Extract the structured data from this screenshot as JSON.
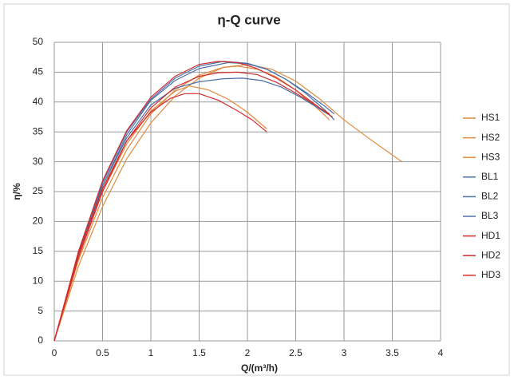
{
  "chart_data": {
    "type": "line",
    "title": "η-Q  curve",
    "x_label": "Q/(m³/h)",
    "y_label": "η/%",
    "xlim": [
      0,
      4
    ],
    "xticks": [
      0,
      0.5,
      1,
      1.5,
      2,
      2.5,
      3,
      3.5,
      4
    ],
    "ylim": [
      0,
      50
    ],
    "yticks": [
      0,
      5,
      10,
      15,
      20,
      25,
      30,
      35,
      40,
      45,
      50
    ],
    "grid": true,
    "legend": "right",
    "series": [
      {
        "name": "HS1",
        "color": "#e08a3c",
        "x": [
          0,
          0.25,
          0.5,
          0.75,
          1,
          1.25,
          1.5,
          1.75,
          2,
          2.25,
          2.5,
          2.75,
          3,
          3.25,
          3.6
        ],
        "values": [
          0,
          12.5,
          22.5,
          30.5,
          36.5,
          41,
          44,
          45.8,
          46.3,
          45.5,
          43.5,
          40.5,
          37,
          34,
          30
        ]
      },
      {
        "name": "HS2",
        "color": "#e08a3c",
        "x": [
          0,
          0.25,
          0.5,
          0.75,
          1,
          1.25,
          1.4,
          1.6,
          1.8,
          2,
          2.2
        ],
        "values": [
          0,
          14,
          25,
          33,
          38.5,
          41.8,
          42.7,
          42,
          40.5,
          38.3,
          35.5
        ]
      },
      {
        "name": "HS3",
        "color": "#e08a3c",
        "x": [
          0,
          0.25,
          0.5,
          0.75,
          1,
          1.25,
          1.5,
          1.75,
          1.9,
          2.1,
          2.3,
          2.5,
          2.7,
          2.85
        ],
        "values": [
          0,
          13.5,
          24,
          32,
          38,
          42,
          44.5,
          45.8,
          46,
          45.5,
          44.2,
          42,
          39.3,
          37
        ]
      },
      {
        "name": "BL1",
        "color": "#4a6fa8",
        "x": [
          0,
          0.25,
          0.5,
          0.75,
          1,
          1.25,
          1.5,
          1.75,
          1.95,
          2.15,
          2.35,
          2.55,
          2.75,
          2.88
        ],
        "values": [
          0,
          14.5,
          26,
          34,
          39.5,
          42.3,
          43.4,
          43.9,
          44,
          43.6,
          42.5,
          40.8,
          38.8,
          37.5
        ]
      },
      {
        "name": "BL2",
        "color": "#4a6fa8",
        "x": [
          0,
          0.25,
          0.5,
          0.75,
          1,
          1.25,
          1.5,
          1.8,
          2,
          2.2,
          2.4,
          2.6,
          2.8,
          2.9
        ],
        "values": [
          0,
          14.5,
          26,
          34.5,
          40.3,
          43.6,
          45.6,
          46.6,
          46.4,
          45.5,
          43.8,
          41.7,
          39.3,
          38
        ]
      },
      {
        "name": "BL3",
        "color": "#4a6fa8",
        "x": [
          0,
          0.25,
          0.5,
          0.75,
          1,
          1.25,
          1.5,
          1.75,
          2,
          2.2,
          2.4,
          2.6,
          2.8,
          2.9
        ],
        "values": [
          0,
          14.8,
          26.5,
          35,
          40.5,
          44,
          46,
          46.8,
          46.5,
          45.5,
          43.8,
          41.5,
          38.7,
          37
        ]
      },
      {
        "name": "HD1",
        "color": "#d42a2a",
        "x": [
          0,
          0.25,
          0.5,
          0.75,
          1,
          1.25,
          1.5,
          1.7,
          1.9,
          2.1,
          2.3,
          2.5,
          2.7,
          2.85
        ],
        "values": [
          0,
          14,
          25,
          33.5,
          39,
          42.5,
          44.3,
          44.9,
          45,
          44.6,
          43.3,
          41.5,
          39.5,
          38
        ]
      },
      {
        "name": "HD2",
        "color": "#d42a2a",
        "x": [
          0,
          0.25,
          0.5,
          0.75,
          1,
          1.2,
          1.35,
          1.5,
          1.7,
          1.9,
          2.05,
          2.2
        ],
        "values": [
          0,
          14.5,
          25.5,
          33.5,
          38.3,
          40.6,
          41.4,
          41.4,
          40.3,
          38.5,
          37,
          35
        ]
      },
      {
        "name": "HD3",
        "color": "#d42a2a",
        "x": [
          0,
          0.25,
          0.5,
          0.75,
          1,
          1.25,
          1.5,
          1.7,
          1.9,
          2.1,
          2.3,
          2.5,
          2.7,
          2.88
        ],
        "values": [
          0,
          15,
          26.8,
          35.2,
          40.8,
          44.3,
          46.3,
          46.8,
          46.6,
          45.6,
          44,
          42,
          39.6,
          37.5
        ]
      }
    ]
  }
}
